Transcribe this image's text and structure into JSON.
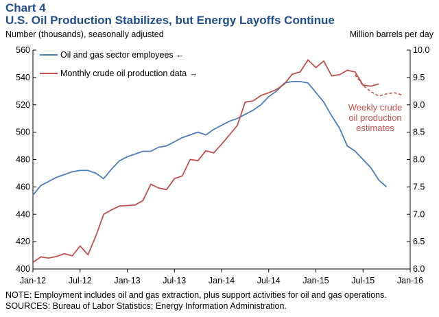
{
  "chart_data": {
    "type": "line",
    "title": "Chart 4",
    "subtitle": "U.S. Oil Production Stabilizes, but Energy Layoffs Continue",
    "ylabel_left": "Number (thousands), seasonally adjusted",
    "ylabel_right": "Million barrels per day",
    "x_ticks": [
      "Jan-12",
      "Jul-12",
      "Jan-13",
      "Jul-13",
      "Jan-14",
      "Jul-14",
      "Jan-15",
      "Jul-15",
      "Jan-16"
    ],
    "y_left_ticks": [
      "400",
      "420",
      "440",
      "460",
      "480",
      "500",
      "520",
      "540",
      "560"
    ],
    "y_right_ticks": [
      "6.0",
      "6.5",
      "7.0",
      "7.5",
      "8.0",
      "8.5",
      "9.0",
      "9.5",
      "10.0"
    ],
    "ylim_left": [
      400,
      560
    ],
    "ylim_right": [
      6.0,
      10.0
    ],
    "xlim": [
      "2012-01",
      "2016-01"
    ],
    "grid": false,
    "legend_position": "top-left",
    "colors": {
      "employees": "#4a7ebb",
      "production": "#c0504d",
      "title": "#1f4e8c"
    },
    "series": [
      {
        "name": "Oil and gas sector employees",
        "legend_arrow": "←",
        "axis": "left",
        "x": [
          "2012-01",
          "2012-02",
          "2012-03",
          "2012-04",
          "2012-05",
          "2012-06",
          "2012-07",
          "2012-08",
          "2012-09",
          "2012-10",
          "2012-11",
          "2012-12",
          "2013-01",
          "2013-02",
          "2013-03",
          "2013-04",
          "2013-05",
          "2013-06",
          "2013-07",
          "2013-08",
          "2013-09",
          "2013-10",
          "2013-11",
          "2013-12",
          "2014-01",
          "2014-02",
          "2014-03",
          "2014-04",
          "2014-05",
          "2014-06",
          "2014-07",
          "2014-08",
          "2014-09",
          "2014-10",
          "2014-11",
          "2014-12",
          "2015-01",
          "2015-02",
          "2015-03",
          "2015-04",
          "2015-05",
          "2015-06",
          "2015-07",
          "2015-08",
          "2015-09",
          "2015-10"
        ],
        "values": [
          454,
          461,
          464,
          467,
          469,
          471,
          472,
          472,
          470,
          466,
          473,
          479,
          482,
          484,
          486,
          486,
          489,
          490,
          493,
          496,
          498,
          500,
          498,
          502,
          505,
          508,
          510,
          513,
          516,
          520,
          526,
          530,
          536,
          537,
          537,
          536,
          529,
          522,
          512,
          503,
          490,
          486,
          480,
          474,
          465,
          460
        ]
      },
      {
        "name": "Monthly crude oil production data",
        "legend_arrow": "→",
        "axis": "right",
        "x": [
          "2012-01",
          "2012-02",
          "2012-03",
          "2012-04",
          "2012-05",
          "2012-06",
          "2012-07",
          "2012-08",
          "2012-09",
          "2012-10",
          "2012-11",
          "2012-12",
          "2013-01",
          "2013-02",
          "2013-03",
          "2013-04",
          "2013-05",
          "2013-06",
          "2013-07",
          "2013-08",
          "2013-09",
          "2013-10",
          "2013-11",
          "2013-12",
          "2014-01",
          "2014-02",
          "2014-03",
          "2014-04",
          "2014-05",
          "2014-06",
          "2014-07",
          "2014-08",
          "2014-09",
          "2014-10",
          "2014-11",
          "2014-12",
          "2015-01",
          "2015-02",
          "2015-03",
          "2015-04",
          "2015-05",
          "2015-06",
          "2015-07",
          "2015-08",
          "2015-09"
        ],
        "values": [
          6.12,
          6.22,
          6.2,
          6.23,
          6.28,
          6.24,
          6.42,
          6.26,
          6.6,
          7.0,
          7.08,
          7.15,
          7.16,
          7.17,
          7.25,
          7.55,
          7.48,
          7.45,
          7.65,
          7.7,
          8.0,
          7.98,
          8.16,
          8.12,
          8.28,
          8.45,
          8.62,
          9.05,
          9.07,
          9.17,
          9.22,
          9.28,
          9.38,
          9.56,
          9.6,
          9.82,
          9.68,
          9.8,
          9.53,
          9.55,
          9.63,
          9.6,
          9.36,
          9.34,
          9.38
        ]
      },
      {
        "name": "Weekly crude oil production estimates",
        "axis": "right",
        "style": "dashed",
        "x": [
          "2015-06",
          "2015-07",
          "2015-08",
          "2015-09",
          "2015-10",
          "2015-11",
          "2015-12"
        ],
        "values": [
          9.55,
          9.35,
          9.24,
          9.16,
          9.2,
          9.22,
          9.18
        ]
      }
    ],
    "annotation": "Weekly crude\noil production\nestimates"
  },
  "note": "NOTE: Employment includes oil and gas extraction, plus support activities for oil and gas operations.",
  "sources": "SOURCES: Bureau of Labor Statistics; Energy Information Administration."
}
